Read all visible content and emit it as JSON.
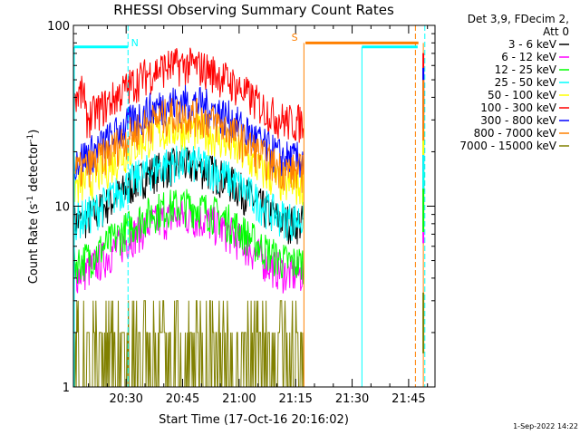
{
  "chart_data": {
    "type": "line",
    "title": "RHESSI Observing Summary Count Rates",
    "xlabel": "Start Time (17-Oct-16 20:16:02)",
    "ylabel_main": "Count Rate (s",
    "ylabel_sup1": "-1",
    "ylabel_mid": " detector",
    "ylabel_sup2": "-1",
    "ylabel_end": ")",
    "y_scale": "log",
    "ylim": [
      1,
      100
    ],
    "xlim_minutes": [
      0,
      96
    ],
    "x_ticks": [
      {
        "label": "20:30",
        "minute": 14
      },
      {
        "label": "20:45",
        "minute": 29
      },
      {
        "label": "21:00",
        "minute": 44
      },
      {
        "label": "21:15",
        "minute": 59
      },
      {
        "label": "21:30",
        "minute": 74
      },
      {
        "label": "21:45",
        "minute": 89
      }
    ],
    "y_ticks": [
      {
        "label": "1",
        "value": 1
      },
      {
        "label": "10",
        "value": 10
      },
      {
        "label": "100",
        "value": 100
      }
    ],
    "legend_header": [
      "Det 3,9, FDecim 2,",
      "Att 0"
    ],
    "legend_position": "right",
    "series": [
      {
        "name": "3 - 6 keV",
        "color": "#000000",
        "level": 12.5
      },
      {
        "name": "6 - 12 keV",
        "color": "#ff00ff",
        "level": 6.5
      },
      {
        "name": "12 - 25 keV",
        "color": "#00ff00",
        "level": 7.5
      },
      {
        "name": "25 - 50 keV",
        "color": "#00ffff",
        "level": 13
      },
      {
        "name": "50 - 100 keV",
        "color": "#ffff00",
        "level": 20
      },
      {
        "name": "100 - 300 keV",
        "color": "#ff0000",
        "level": 45
      },
      {
        "name": "300 - 800 keV",
        "color": "#0000ff",
        "level": 28
      },
      {
        "name": "800 - 7000 keV",
        "color": "#ff8000",
        "level": 24
      },
      {
        "name": "7000 - 15000 keV",
        "color": "#808000",
        "level": 1.6
      }
    ],
    "markers": [
      {
        "label": "N",
        "color": "#00ffff"
      },
      {
        "label": "S",
        "color": "#ff8000"
      }
    ],
    "footer_date": "1-Sep-2022 14:22"
  }
}
